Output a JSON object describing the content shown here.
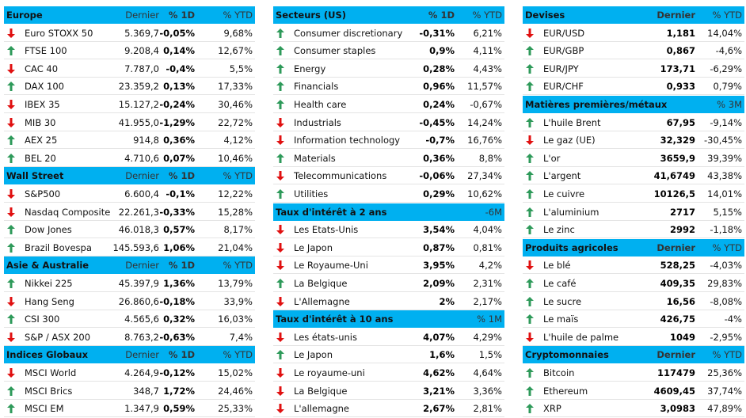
{
  "panels": [
    {
      "sections": [
        {
          "title": "Europe",
          "heads": [
            "Dernier",
            "% 1D",
            "% YTD"
          ],
          "rows": [
            {
              "name": "Euro STOXX 50",
              "trend": "down",
              "values": [
                "5.369,7",
                "-0,05%",
                "9,68%"
              ]
            },
            {
              "name": "FTSE 100",
              "trend": "up",
              "values": [
                "9.208,4",
                "0,14%",
                "12,67%"
              ]
            },
            {
              "name": "CAC 40",
              "trend": "down",
              "values": [
                "7.787,0",
                "-0,4%",
                "5,5%"
              ]
            },
            {
              "name": "DAX 100",
              "trend": "up",
              "values": [
                "23.359,2",
                "0,13%",
                "17,33%"
              ]
            },
            {
              "name": "IBEX 35",
              "trend": "down",
              "values": [
                "15.127,2",
                "-0,24%",
                "30,46%"
              ]
            },
            {
              "name": "MIB 30",
              "trend": "down",
              "values": [
                "41.955,0",
                "-1,29%",
                "22,72%"
              ]
            },
            {
              "name": "AEX 25",
              "trend": "up",
              "values": [
                "914,8",
                "0,36%",
                "4,12%"
              ]
            },
            {
              "name": "BEL 20",
              "trend": "up",
              "values": [
                "4.710,6",
                "0,07%",
                "10,46%"
              ]
            }
          ]
        },
        {
          "title": "Wall Street",
          "heads": [
            "Dernier",
            "% 1D",
            "% YTD"
          ],
          "rows": [
            {
              "name": "S&P500",
              "trend": "down",
              "values": [
                "6.600,4",
                "-0,1%",
                "12,22%"
              ]
            },
            {
              "name": "Nasdaq Composite",
              "trend": "down",
              "values": [
                "22.261,3",
                "-0,33%",
                "15,28%"
              ]
            },
            {
              "name": "Dow Jones",
              "trend": "up",
              "values": [
                "46.018,3",
                "0,57%",
                "8,17%"
              ]
            },
            {
              "name": "Brazil Bovespa",
              "trend": "up",
              "values": [
                "145.593,6",
                "1,06%",
                "21,04%"
              ]
            }
          ]
        },
        {
          "title": "Asie & Australie",
          "heads": [
            "Dernier",
            "% 1D",
            "% YTD"
          ],
          "rows": [
            {
              "name": "Nikkei 225",
              "trend": "up",
              "values": [
                "45.397,9",
                "1,36%",
                "13,79%"
              ]
            },
            {
              "name": "Hang Seng",
              "trend": "down",
              "values": [
                "26.860,6",
                "-0,18%",
                "33,9%"
              ]
            },
            {
              "name": "CSI 300",
              "trend": "up",
              "values": [
                "4.565,6",
                "0,32%",
                "16,03%"
              ]
            },
            {
              "name": "S&P / ASX 200",
              "trend": "down",
              "values": [
                "8.763,2",
                "-0,63%",
                "7,4%"
              ]
            }
          ]
        },
        {
          "title": "Indices Globaux",
          "heads": [
            "Dernier",
            "% 1D",
            "% YTD"
          ],
          "rows": [
            {
              "name": "MSCI World",
              "trend": "down",
              "values": [
                "4.264,9",
                "-0,12%",
                "15,02%"
              ]
            },
            {
              "name": "MSCI Brics",
              "trend": "up",
              "values": [
                "348,7",
                "1,72%",
                "24,46%"
              ]
            },
            {
              "name": "MSCI EM",
              "trend": "up",
              "values": [
                "1.347,9",
                "0,59%",
                "25,33%"
              ]
            }
          ]
        }
      ]
    },
    {
      "sections": [
        {
          "title": "Secteurs (US)",
          "heads": [
            "% 1D",
            "% YTD"
          ],
          "rows": [
            {
              "name": "Consumer discretionary",
              "trend": "up",
              "values": [
                "-0,31%",
                "6,21%"
              ]
            },
            {
              "name": "Consumer staples",
              "trend": "up",
              "values": [
                "0,9%",
                "4,11%"
              ]
            },
            {
              "name": "Energy",
              "trend": "up",
              "values": [
                "0,28%",
                "4,43%"
              ]
            },
            {
              "name": "Financials",
              "trend": "up",
              "values": [
                "0,96%",
                "11,57%"
              ]
            },
            {
              "name": "Health care",
              "trend": "up",
              "values": [
                "0,24%",
                "-0,67%"
              ]
            },
            {
              "name": "Industrials",
              "trend": "down",
              "values": [
                "-0,45%",
                "14,24%"
              ]
            },
            {
              "name": "Information technology",
              "trend": "down",
              "values": [
                "-0,7%",
                "16,76%"
              ]
            },
            {
              "name": "Materials",
              "trend": "up",
              "values": [
                "0,36%",
                "8,8%"
              ]
            },
            {
              "name": "Telecommunications",
              "trend": "down",
              "values": [
                "-0,06%",
                "27,34%"
              ]
            },
            {
              "name": "Utilities",
              "trend": "up",
              "values": [
                "0,29%",
                "10,62%"
              ]
            }
          ]
        },
        {
          "title": "Taux d'intérêt à 2 ans",
          "heads": [
            null,
            "-6M"
          ],
          "rows": [
            {
              "name": "Les Etats-Unis",
              "trend": "down",
              "values": [
                "3,54%",
                "4,04%"
              ]
            },
            {
              "name": "Le Japon",
              "trend": "down",
              "values": [
                "0,87%",
                "0,81%"
              ]
            },
            {
              "name": "Le Royaume-Uni",
              "trend": "down",
              "values": [
                "3,95%",
                "4,2%"
              ]
            },
            {
              "name": "La Belgique",
              "trend": "up",
              "values": [
                "2,09%",
                "2,31%"
              ]
            },
            {
              "name": "L'Allemagne",
              "trend": "down",
              "values": [
                "2%",
                "2,17%"
              ]
            }
          ]
        },
        {
          "title": "Taux d'intérêt à 10 ans",
          "heads": [
            null,
            "% 1M"
          ],
          "rows": [
            {
              "name": "Les états-unis",
              "trend": "down",
              "values": [
                "4,07%",
                "4,29%"
              ]
            },
            {
              "name": "Le Japon",
              "trend": "up",
              "values": [
                "1,6%",
                "1,5%"
              ]
            },
            {
              "name": "Le royaume-uni",
              "trend": "down",
              "values": [
                "4,62%",
                "4,64%"
              ]
            },
            {
              "name": "La Belgique",
              "trend": "down",
              "values": [
                "3,21%",
                "3,36%"
              ]
            },
            {
              "name": "L'allemagne",
              "trend": "down",
              "values": [
                "2,67%",
                "2,81%"
              ]
            }
          ]
        }
      ]
    },
    {
      "sections": [
        {
          "title": "Devises",
          "heads": [
            "Dernier",
            "% YTD"
          ],
          "rows": [
            {
              "name": "EUR/USD",
              "trend": "down",
              "values": [
                "1,181",
                "14,04%"
              ]
            },
            {
              "name": "EUR/GBP",
              "trend": "up",
              "values": [
                "0,867",
                "-4,6%"
              ]
            },
            {
              "name": "EUR/JPY",
              "trend": "up",
              "values": [
                "173,71",
                "-6,29%"
              ]
            },
            {
              "name": "EUR/CHF",
              "trend": "up",
              "values": [
                "0,933",
                "0,79%"
              ]
            }
          ]
        },
        {
          "title": "Matières premières/métaux",
          "heads": [
            null,
            "% 3M"
          ],
          "rows": [
            {
              "name": "L'huile Brent",
              "trend": "up",
              "values": [
                "67,95",
                "-9,14%"
              ]
            },
            {
              "name": "Le gaz (UE)",
              "trend": "down",
              "values": [
                "32,329",
                "-30,45%"
              ]
            },
            {
              "name": "L'or",
              "trend": "up",
              "values": [
                "3659,9",
                "39,39%"
              ]
            },
            {
              "name": "L'argent",
              "trend": "up",
              "values": [
                "41,6749",
                "43,38%"
              ]
            },
            {
              "name": "Le cuivre",
              "trend": "up",
              "values": [
                "10126,5",
                "14,01%"
              ]
            },
            {
              "name": "L'aluminium",
              "trend": "up",
              "values": [
                "2717",
                "5,15%"
              ]
            },
            {
              "name": "Le zinc",
              "trend": "up",
              "values": [
                "2992",
                "-1,18%"
              ]
            }
          ]
        },
        {
          "title": "Produits agricoles",
          "heads": [
            "Dernier",
            "% YTD"
          ],
          "rows": [
            {
              "name": "Le blé",
              "trend": "down",
              "values": [
                "528,25",
                "-4,03%"
              ]
            },
            {
              "name": "Le café",
              "trend": "up",
              "values": [
                "409,35",
                "29,83%"
              ]
            },
            {
              "name": "Le sucre",
              "trend": "up",
              "values": [
                "16,56",
                "-8,08%"
              ]
            },
            {
              "name": "Le maïs",
              "trend": "up",
              "values": [
                "426,75",
                "-4%"
              ]
            },
            {
              "name": "L'huile de palme",
              "trend": "down",
              "values": [
                "1049",
                "-2,95%"
              ]
            }
          ]
        },
        {
          "title": "Cryptomonnaies",
          "heads": [
            "Dernier",
            "% YTD"
          ],
          "rows": [
            {
              "name": "Bitcoin",
              "trend": "up",
              "values": [
                "117479",
                "25,36%"
              ]
            },
            {
              "name": "Ethereum",
              "trend": "up",
              "values": [
                "4609,45",
                "37,74%"
              ]
            },
            {
              "name": "XRP",
              "trend": "up",
              "values": [
                "3,0983",
                "47,89%"
              ]
            }
          ]
        }
      ]
    }
  ]
}
